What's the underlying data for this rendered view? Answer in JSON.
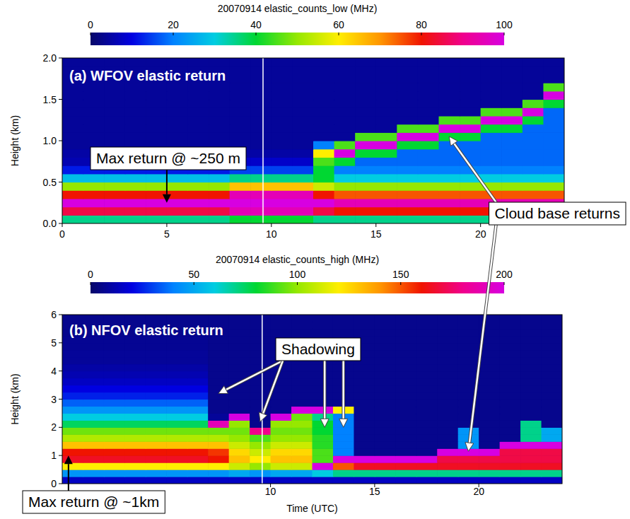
{
  "chart_data": [
    {
      "type": "heatmap",
      "title": "(a) WFOV elastic return",
      "y_label": "Height (km)",
      "xlim": [
        0,
        24
      ],
      "xticks": [
        0,
        5,
        10,
        15,
        20
      ],
      "ylim": [
        0,
        2
      ],
      "yticks": [
        {
          "value": 0,
          "label": "0.0"
        },
        {
          "value": 0.5,
          "label": "0.5"
        },
        {
          "value": 1,
          "label": "1.0"
        },
        {
          "value": 1.5,
          "label": "1.5"
        },
        {
          "value": 2,
          "label": "2.0"
        }
      ],
      "x_edges": [
        0,
        1,
        2,
        3,
        4,
        5,
        6,
        7,
        8,
        9,
        10,
        11,
        12,
        13,
        14,
        15,
        16,
        17,
        18,
        19,
        20,
        21,
        22,
        23,
        24
      ],
      "y_edges": [
        0,
        0.1,
        0.2,
        0.3,
        0.4,
        0.5,
        0.6,
        0.7,
        0.8,
        0.9,
        1.0,
        1.1,
        1.2,
        1.3,
        1.4,
        1.5,
        1.6,
        1.7,
        1.8,
        1.9,
        2.0
      ],
      "cells": [
        [
          35,
          35,
          35,
          35,
          35,
          35,
          35,
          35,
          40,
          40,
          40,
          40,
          35,
          35,
          35,
          35,
          35,
          35,
          35,
          35,
          35,
          35,
          35,
          35
        ],
        [
          85,
          85,
          85,
          85,
          85,
          85,
          85,
          85,
          95,
          95,
          95,
          95,
          85,
          80,
          80,
          80,
          80,
          80,
          80,
          80,
          80,
          80,
          80,
          80
        ],
        [
          100,
          100,
          100,
          100,
          100,
          100,
          100,
          100,
          100,
          100,
          100,
          100,
          100,
          95,
          95,
          95,
          95,
          95,
          95,
          95,
          95,
          95,
          95,
          95
        ],
        [
          80,
          80,
          80,
          80,
          80,
          80,
          80,
          80,
          95,
          95,
          95,
          95,
          80,
          75,
          75,
          75,
          75,
          75,
          75,
          75,
          75,
          75,
          75,
          75
        ],
        [
          50,
          50,
          50,
          50,
          50,
          50,
          50,
          50,
          65,
          65,
          65,
          65,
          55,
          50,
          50,
          50,
          50,
          50,
          50,
          50,
          50,
          50,
          50,
          50
        ],
        [
          28,
          28,
          28,
          28,
          28,
          28,
          28,
          28,
          35,
          35,
          35,
          35,
          40,
          30,
          30,
          30,
          30,
          30,
          30,
          30,
          30,
          30,
          30,
          30
        ],
        [
          12,
          12,
          12,
          12,
          12,
          12,
          12,
          12,
          15,
          15,
          15,
          15,
          40,
          20,
          20,
          20,
          20,
          20,
          20,
          20,
          20,
          20,
          20,
          20
        ],
        [
          6,
          6,
          6,
          6,
          6,
          6,
          6,
          6,
          8,
          8,
          8,
          8,
          45,
          40,
          18,
          18,
          18,
          18,
          18,
          18,
          18,
          18,
          18,
          18
        ],
        [
          5,
          5,
          5,
          5,
          5,
          5,
          5,
          5,
          5,
          5,
          5,
          5,
          60,
          100,
          40,
          40,
          18,
          18,
          18,
          18,
          18,
          18,
          18,
          18
        ],
        [
          4,
          4,
          4,
          4,
          4,
          4,
          4,
          4,
          4,
          4,
          4,
          4,
          20,
          45,
          100,
          100,
          40,
          40,
          18,
          18,
          18,
          18,
          18,
          18
        ],
        [
          4,
          4,
          4,
          4,
          4,
          4,
          4,
          4,
          4,
          4,
          4,
          4,
          4,
          4,
          45,
          45,
          100,
          100,
          40,
          40,
          18,
          18,
          18,
          18
        ],
        [
          4,
          4,
          4,
          4,
          4,
          4,
          4,
          4,
          4,
          4,
          4,
          4,
          4,
          4,
          4,
          4,
          45,
          45,
          100,
          100,
          40,
          40,
          18,
          18
        ],
        [
          4,
          4,
          4,
          4,
          4,
          4,
          4,
          4,
          4,
          4,
          4,
          4,
          4,
          4,
          4,
          4,
          4,
          4,
          45,
          45,
          100,
          100,
          40,
          18
        ],
        [
          4,
          4,
          4,
          4,
          4,
          4,
          4,
          4,
          4,
          4,
          4,
          4,
          4,
          4,
          4,
          4,
          4,
          4,
          4,
          4,
          45,
          45,
          100,
          18
        ],
        [
          4,
          4,
          4,
          4,
          4,
          4,
          4,
          4,
          4,
          4,
          4,
          4,
          4,
          4,
          4,
          4,
          4,
          4,
          4,
          4,
          4,
          4,
          45,
          40
        ],
        [
          4,
          4,
          4,
          4,
          4,
          4,
          4,
          4,
          4,
          4,
          4,
          4,
          4,
          4,
          4,
          4,
          4,
          4,
          4,
          4,
          4,
          4,
          4,
          100
        ],
        [
          4,
          4,
          4,
          4,
          4,
          4,
          4,
          4,
          4,
          4,
          4,
          4,
          4,
          4,
          4,
          4,
          4,
          4,
          4,
          4,
          4,
          4,
          4,
          45
        ],
        [
          4,
          4,
          4,
          4,
          4,
          4,
          4,
          4,
          4,
          4,
          4,
          4,
          4,
          4,
          4,
          4,
          4,
          4,
          4,
          4,
          4,
          4,
          4,
          4
        ],
        [
          4,
          4,
          4,
          4,
          4,
          4,
          4,
          4,
          4,
          4,
          4,
          4,
          4,
          4,
          4,
          4,
          4,
          4,
          4,
          4,
          4,
          4,
          4,
          4
        ],
        [
          4,
          4,
          4,
          4,
          4,
          4,
          4,
          4,
          4,
          4,
          4,
          4,
          4,
          4,
          4,
          4,
          4,
          4,
          4,
          4,
          4,
          4,
          4,
          4
        ]
      ],
      "colorbar": {
        "title": "20070914 elastic_counts_low (MHz)",
        "range": [
          0,
          100
        ],
        "ticks": [
          0,
          20,
          40,
          60,
          80,
          100
        ]
      },
      "vline_x": 9.6,
      "annotations": [
        {
          "text": "Max return @ ~250 m",
          "targets": [
            {
              "x": 5,
              "y": 0.25
            }
          ]
        }
      ]
    },
    {
      "type": "heatmap",
      "title": "(b) NFOV elastic return",
      "y_label": "Height (km)",
      "x_label": "Time (UTC)",
      "xlim": [
        0,
        24
      ],
      "xticks": [
        10,
        15,
        20
      ],
      "ylim": [
        0,
        6
      ],
      "yticks": [
        0,
        1,
        2,
        3,
        4,
        5,
        6
      ],
      "x_edges": [
        0,
        1,
        2,
        3,
        4,
        5,
        6,
        7,
        8,
        9,
        10,
        11,
        12,
        13,
        14,
        15,
        16,
        17,
        18,
        19,
        20,
        21,
        22,
        23,
        24
      ],
      "y_edges": [
        0,
        0.25,
        0.5,
        0.75,
        1.0,
        1.25,
        1.5,
        1.75,
        2.0,
        2.25,
        2.5,
        2.75,
        3.0,
        3.25,
        3.5,
        3.75,
        4.0,
        4.25,
        4.5,
        4.75,
        5.0,
        5.25,
        5.5,
        5.75,
        6.0
      ],
      "cells": [
        [
          15,
          15,
          15,
          15,
          15,
          15,
          15,
          15,
          15,
          15,
          15,
          15,
          15,
          15,
          15,
          15,
          15,
          15,
          15,
          15,
          15,
          15,
          15,
          15
        ],
        [
          45,
          45,
          45,
          45,
          45,
          45,
          45,
          45,
          50,
          45,
          50,
          50,
          60,
          70,
          70,
          70,
          70,
          70,
          70,
          70,
          70,
          70,
          70,
          70
        ],
        [
          120,
          120,
          120,
          120,
          120,
          120,
          120,
          120,
          110,
          100,
          110,
          110,
          200,
          150,
          165,
          165,
          165,
          165,
          165,
          165,
          165,
          165,
          165,
          165
        ],
        [
          165,
          165,
          165,
          165,
          165,
          165,
          165,
          160,
          130,
          120,
          130,
          130,
          90,
          200,
          200,
          200,
          200,
          200,
          170,
          170,
          170,
          170,
          170,
          170
        ],
        [
          160,
          160,
          160,
          160,
          160,
          160,
          160,
          155,
          125,
          110,
          125,
          125,
          90,
          40,
          6,
          6,
          6,
          6,
          200,
          200,
          200,
          170,
          170,
          170
        ],
        [
          130,
          130,
          130,
          130,
          130,
          130,
          130,
          130,
          110,
          100,
          110,
          110,
          85,
          40,
          6,
          6,
          6,
          6,
          6,
          45,
          6,
          200,
          200,
          200
        ],
        [
          105,
          105,
          105,
          105,
          105,
          105,
          105,
          105,
          100,
          90,
          100,
          100,
          85,
          40,
          6,
          6,
          6,
          6,
          6,
          45,
          6,
          6,
          70,
          50
        ],
        [
          95,
          95,
          95,
          95,
          95,
          95,
          95,
          95,
          95,
          180,
          95,
          95,
          80,
          40,
          6,
          6,
          6,
          6,
          6,
          45,
          6,
          6,
          70,
          50
        ],
        [
          75,
          75,
          75,
          75,
          75,
          75,
          75,
          190,
          100,
          6,
          100,
          100,
          80,
          40,
          6,
          6,
          6,
          6,
          6,
          6,
          6,
          6,
          70,
          6
        ],
        [
          60,
          60,
          60,
          60,
          60,
          60,
          60,
          8,
          200,
          6,
          200,
          95,
          70,
          40,
          6,
          6,
          6,
          6,
          6,
          6,
          6,
          6,
          6,
          6
        ],
        [
          45,
          45,
          45,
          45,
          45,
          45,
          45,
          6,
          6,
          6,
          6,
          200,
          200,
          120,
          6,
          6,
          6,
          6,
          6,
          6,
          6,
          6,
          6,
          6
        ],
        [
          35,
          35,
          35,
          35,
          35,
          35,
          35,
          6,
          6,
          6,
          6,
          6,
          6,
          6,
          6,
          6,
          6,
          6,
          6,
          6,
          6,
          6,
          6,
          6
        ],
        [
          25,
          25,
          25,
          25,
          25,
          25,
          25,
          6,
          6,
          6,
          6,
          6,
          6,
          6,
          6,
          6,
          6,
          6,
          6,
          6,
          6,
          6,
          6,
          6
        ],
        [
          20,
          20,
          20,
          20,
          20,
          20,
          20,
          6,
          6,
          6,
          6,
          6,
          6,
          6,
          6,
          6,
          6,
          6,
          6,
          6,
          6,
          6,
          6,
          6
        ],
        [
          15,
          15,
          15,
          15,
          15,
          15,
          15,
          6,
          6,
          6,
          6,
          6,
          6,
          6,
          6,
          6,
          6,
          6,
          6,
          6,
          6,
          6,
          6,
          6
        ],
        [
          12,
          12,
          12,
          12,
          12,
          12,
          12,
          6,
          6,
          6,
          6,
          6,
          6,
          6,
          6,
          6,
          6,
          6,
          6,
          6,
          6,
          6,
          6,
          6
        ],
        [
          10,
          10,
          10,
          10,
          10,
          10,
          10,
          6,
          6,
          6,
          6,
          6,
          6,
          6,
          6,
          6,
          6,
          6,
          6,
          6,
          6,
          6,
          6,
          6
        ],
        [
          8,
          8,
          8,
          8,
          8,
          8,
          8,
          6,
          6,
          6,
          6,
          6,
          6,
          6,
          6,
          6,
          6,
          6,
          6,
          6,
          6,
          6,
          6,
          6
        ],
        [
          8,
          8,
          8,
          8,
          8,
          8,
          8,
          6,
          6,
          6,
          6,
          6,
          6,
          6,
          6,
          6,
          6,
          6,
          6,
          6,
          6,
          6,
          6,
          6
        ],
        [
          7,
          7,
          7,
          7,
          7,
          7,
          7,
          6,
          6,
          6,
          6,
          6,
          6,
          6,
          6,
          6,
          6,
          6,
          6,
          6,
          6,
          6,
          6,
          6
        ],
        [
          7,
          7,
          7,
          7,
          7,
          7,
          7,
          6,
          6,
          6,
          6,
          6,
          6,
          6,
          6,
          6,
          6,
          6,
          6,
          6,
          6,
          6,
          6,
          6
        ],
        [
          6,
          6,
          6,
          6,
          6,
          6,
          6,
          6,
          6,
          6,
          6,
          6,
          6,
          6,
          6,
          6,
          6,
          6,
          6,
          6,
          6,
          6,
          6,
          6
        ],
        [
          6,
          6,
          6,
          6,
          6,
          6,
          6,
          6,
          6,
          6,
          6,
          6,
          6,
          6,
          6,
          6,
          6,
          6,
          6,
          6,
          6,
          6,
          6,
          6
        ],
        [
          6,
          6,
          6,
          6,
          6,
          6,
          6,
          6,
          6,
          6,
          6,
          6,
          6,
          6,
          6,
          6,
          6,
          6,
          6,
          6,
          6,
          6,
          6,
          6
        ]
      ],
      "colorbar": {
        "title": "20070914 elastic_counts_high (MHz)",
        "range": [
          0,
          200
        ],
        "ticks": [
          0,
          50,
          100,
          150,
          200
        ]
      },
      "vline_x": 9.6,
      "annotations": [
        {
          "text": "Max return @ ~1km",
          "targets": [
            {
              "x": 0.3,
              "y": 1.0
            }
          ]
        },
        {
          "text": "Shadowing",
          "targets": [
            {
              "x": 7.5,
              "y": 3.2
            },
            {
              "x": 9.5,
              "y": 2.2
            },
            {
              "x": 12.6,
              "y": 2.0
            },
            {
              "x": 13.5,
              "y": 2.0
            }
          ]
        }
      ]
    }
  ],
  "annotations": [
    {
      "text": "Cloud base returns",
      "targets": [
        {
          "panel": 0,
          "x": 18.5,
          "y": 1.05
        },
        {
          "panel": 1,
          "x": 19.5,
          "y": 1.15
        }
      ]
    }
  ]
}
